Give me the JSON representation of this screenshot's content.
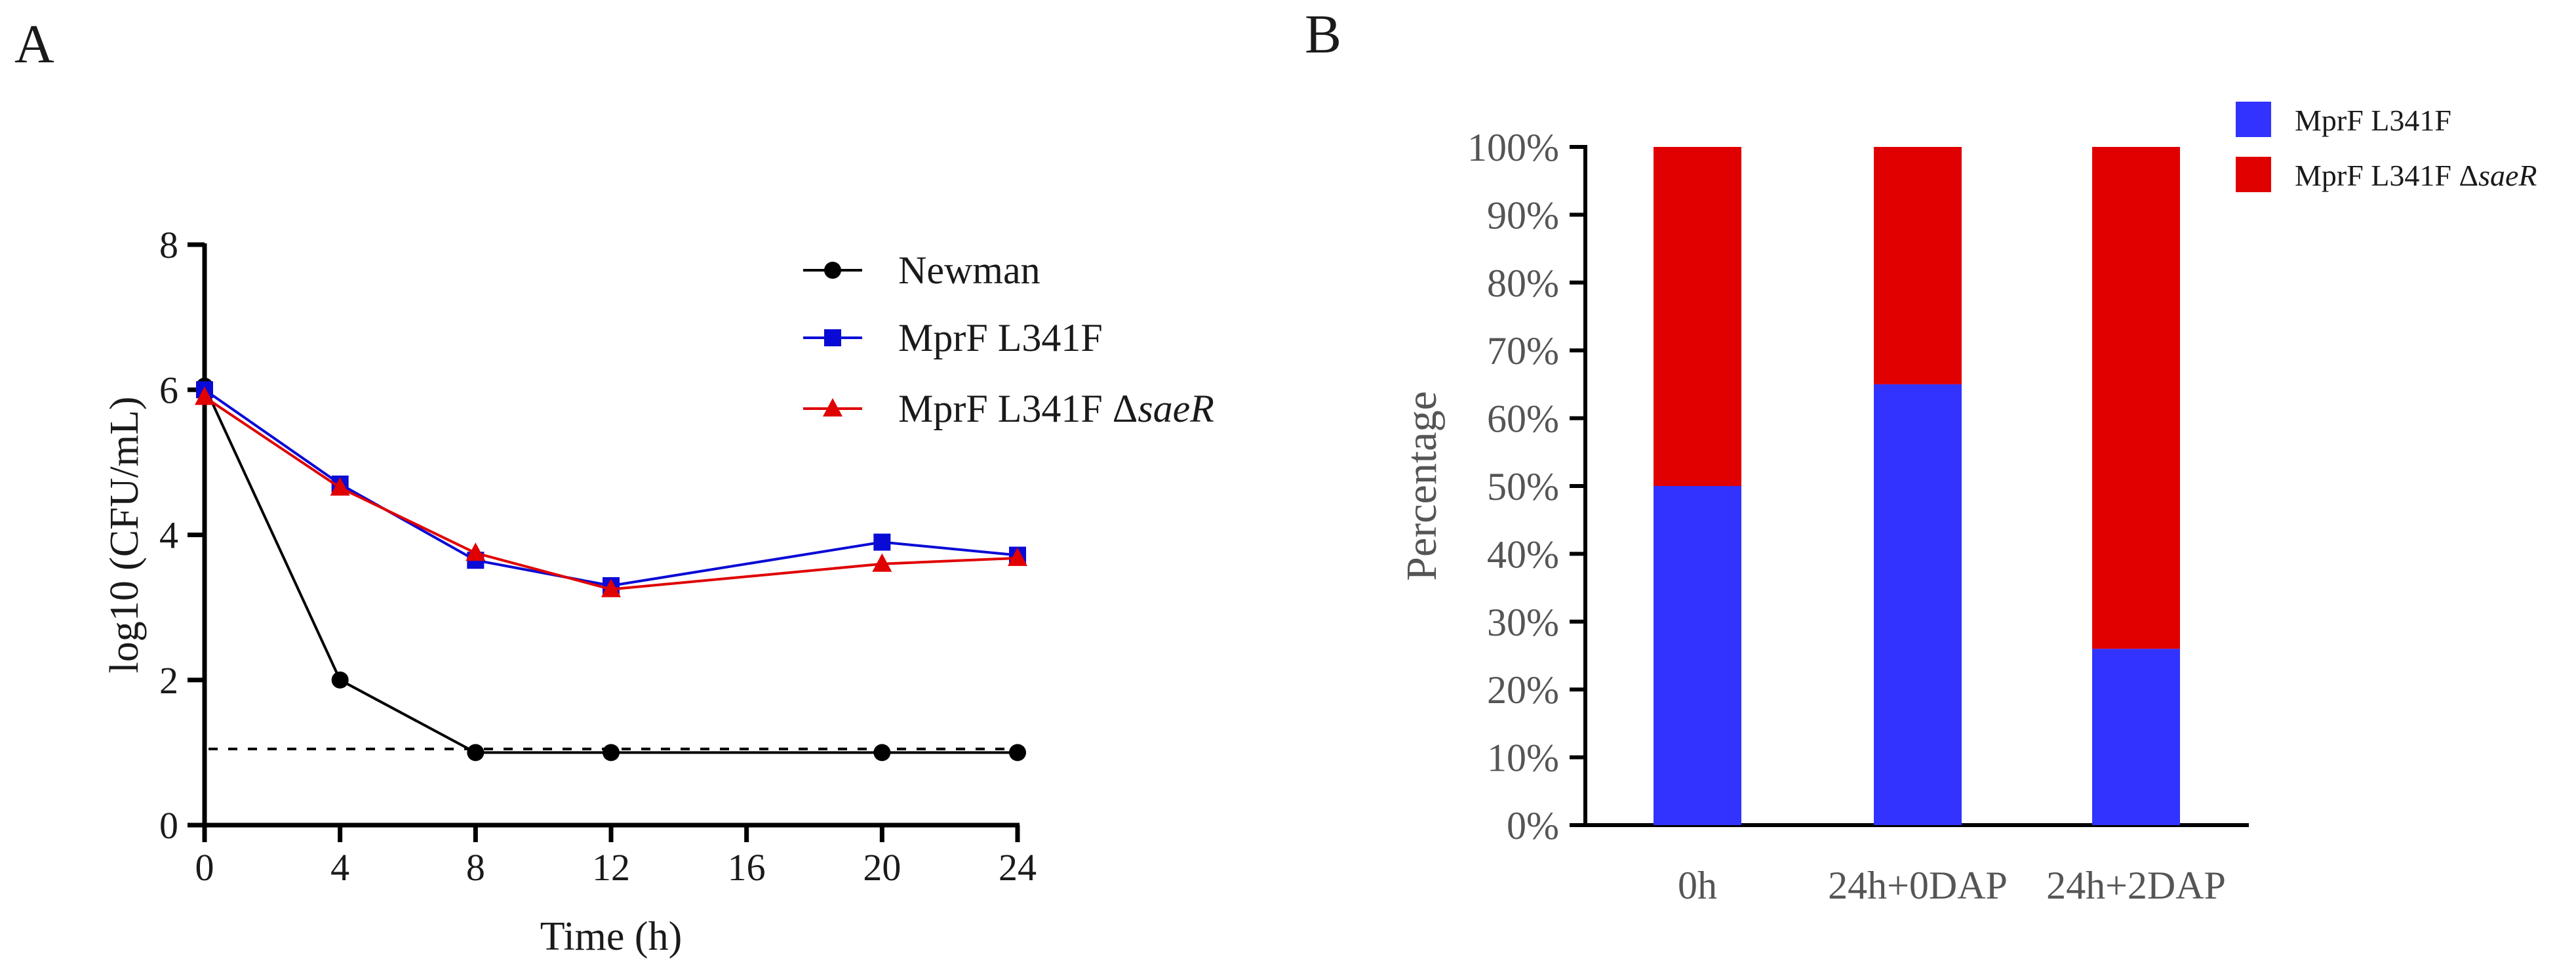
{
  "panels": {
    "a_label": "A",
    "b_label": "B"
  },
  "chart_data": [
    {
      "type": "line",
      "panel": "A",
      "xlabel": "Time (h)",
      "ylabel": "log10 (CFU/mL)",
      "xlim": [
        0,
        24
      ],
      "ylim": [
        0,
        8
      ],
      "xticks": [
        0,
        4,
        8,
        12,
        16,
        20,
        24
      ],
      "yticks": [
        0,
        2,
        4,
        6,
        8
      ],
      "detection_limit": 1.05,
      "legend_position": "top-right",
      "series": [
        {
          "name": "Newman",
          "name_suffix": "",
          "color": "#000000",
          "marker": "circle",
          "x": [
            0,
            4,
            8,
            12,
            20,
            24
          ],
          "values": [
            6.05,
            2.0,
            1.0,
            1.0,
            1.0,
            1.0
          ]
        },
        {
          "name": "MprF L341F",
          "name_suffix": "",
          "color": "#0a0ad6",
          "marker": "square",
          "x": [
            0,
            4,
            8,
            12,
            20,
            24
          ],
          "values": [
            6.0,
            4.7,
            3.65,
            3.3,
            3.9,
            3.72
          ]
        },
        {
          "name": "MprF L341F Δ",
          "name_suffix": "saeR",
          "color": "#e00000",
          "marker": "triangle",
          "x": [
            0,
            4,
            8,
            12,
            20,
            24
          ],
          "values": [
            5.9,
            4.65,
            3.75,
            3.25,
            3.6,
            3.68
          ]
        }
      ]
    },
    {
      "type": "bar",
      "stacked": true,
      "panel": "B",
      "ylabel": "Percentage",
      "ylim": [
        0,
        100
      ],
      "yticks": [
        "0%",
        "10%",
        "20%",
        "30%",
        "40%",
        "50%",
        "60%",
        "70%",
        "80%",
        "90%",
        "100%"
      ],
      "categories": [
        "0h",
        "24h+0DAP",
        "24h+2DAP"
      ],
      "legend_position": "top-right",
      "series": [
        {
          "name": "MprF L341F",
          "name_suffix": "",
          "color": "#3333ff",
          "values": [
            50,
            65,
            26
          ]
        },
        {
          "name": "MprF L341F Δ",
          "name_suffix": "saeR",
          "color": "#e00000",
          "values": [
            50,
            35,
            74
          ]
        }
      ]
    }
  ]
}
